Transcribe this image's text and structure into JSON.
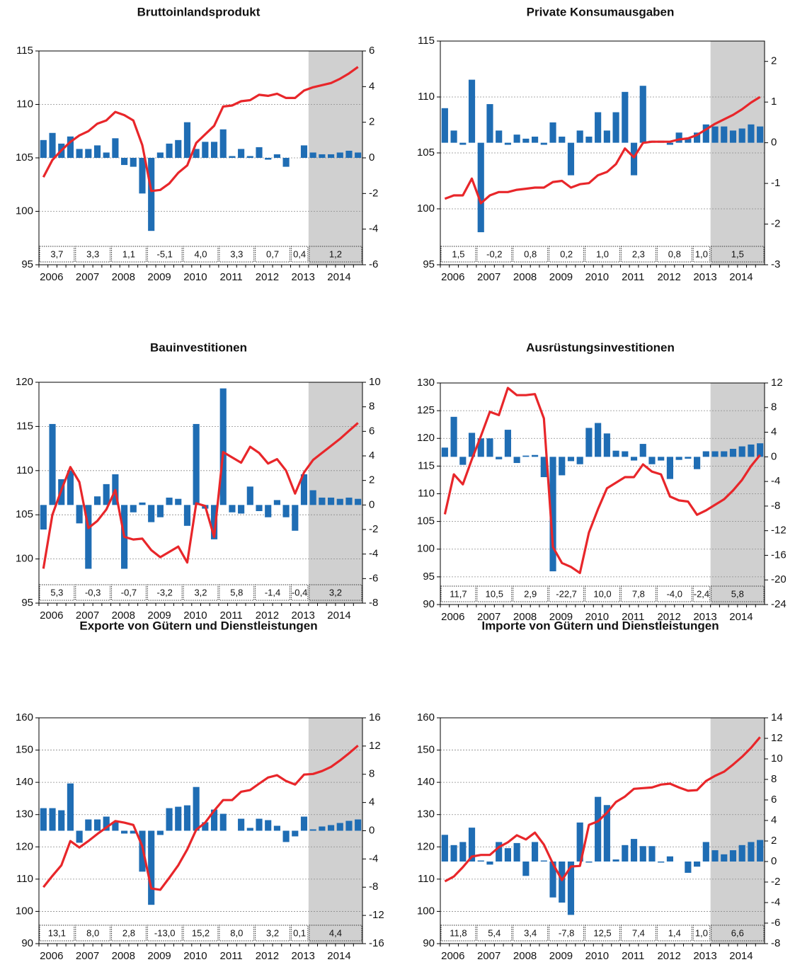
{
  "chart_data": [
    {
      "type": "combo",
      "title": "Bruttoinlandsprodukt",
      "categories": [
        "2006",
        null,
        null,
        null,
        "2007",
        null,
        null,
        null,
        "2008",
        null,
        null,
        null,
        "2009",
        null,
        null,
        null,
        "2010",
        null,
        null,
        null,
        "2011",
        null,
        null,
        null,
        "2012",
        null,
        null,
        null,
        "2013",
        null,
        null,
        null,
        "2014",
        null,
        null,
        null
      ],
      "ylim": [
        95,
        115
      ],
      "yticks": [
        95,
        100,
        105,
        110,
        115
      ],
      "y2lim": [
        -6,
        6
      ],
      "y2ticks": [
        -6,
        -4,
        -2,
        0,
        2,
        4,
        6
      ],
      "grid": true,
      "series": [
        {
          "type": "bar",
          "axis": "y2",
          "color": "#1f6db4",
          "values": [
            1.0,
            1.4,
            0.8,
            1.2,
            0.5,
            0.5,
            0.7,
            0.3,
            1.1,
            -0.4,
            -0.5,
            -2.0,
            -4.1,
            0.3,
            0.8,
            1.0,
            2.0,
            0.5,
            0.9,
            0.9,
            1.6,
            0.1,
            0.5,
            0.1,
            0.6,
            -0.1,
            0.2,
            -0.5,
            0.0,
            0.7,
            0.3,
            0.2,
            0.2,
            0.3,
            0.4,
            0.3
          ]
        },
        {
          "type": "line",
          "axis": "y",
          "color": "#e8262a",
          "values": [
            103.2,
            104.8,
            105.7,
            106.5,
            107.1,
            107.5,
            108.2,
            108.5,
            109.3,
            109.0,
            108.5,
            106.2,
            101.9,
            102.0,
            102.6,
            103.6,
            104.3,
            106.4,
            107.2,
            108.0,
            109.8,
            109.9,
            110.3,
            110.4,
            110.9,
            110.8,
            111.0,
            110.6,
            110.6,
            111.3,
            111.6,
            111.8,
            112.0,
            112.4,
            112.9,
            113.5
          ]
        }
      ],
      "annual": {
        "values": [
          3.7,
          3.3,
          1.1,
          -5.1,
          4.0,
          3.3,
          0.7,
          0.4,
          1.2
        ],
        "value_labels": [
          "3,7",
          "3,3",
          "1,1",
          "-5,1",
          "4,0",
          "3,3",
          "0,7",
          "0,4",
          "1,2"
        ]
      }
    },
    {
      "type": "combo",
      "title": "Private Konsumausgaben",
      "categories": [
        "2006",
        null,
        null,
        null,
        "2007",
        null,
        null,
        null,
        "2008",
        null,
        null,
        null,
        "2009",
        null,
        null,
        null,
        "2010",
        null,
        null,
        null,
        "2011",
        null,
        null,
        null,
        "2012",
        null,
        null,
        null,
        "2013",
        null,
        null,
        null,
        "2014",
        null,
        null,
        null
      ],
      "ylim": [
        95,
        115
      ],
      "yticks": [
        95,
        100,
        105,
        110,
        115
      ],
      "y2lim": [
        -3,
        2.5
      ],
      "y2ticks": [
        -3,
        -2,
        -1,
        0,
        1,
        2
      ],
      "grid": true,
      "series": [
        {
          "type": "bar",
          "axis": "y2",
          "color": "#1f6db4",
          "values": [
            0.85,
            0.3,
            -0.05,
            1.55,
            -2.2,
            0.95,
            0.3,
            -0.05,
            0.2,
            0.1,
            0.15,
            -0.05,
            0.5,
            0.15,
            -0.8,
            0.3,
            0.15,
            0.75,
            0.3,
            0.75,
            1.25,
            -0.8,
            1.4,
            0.05,
            0.05,
            -0.05,
            0.25,
            0.1,
            0.25,
            0.45,
            0.4,
            0.4,
            0.3,
            0.35,
            0.45,
            0.4
          ]
        },
        {
          "type": "line",
          "axis": "y",
          "color": "#e8262a",
          "values": [
            100.9,
            101.2,
            101.2,
            102.7,
            100.5,
            101.2,
            101.5,
            101.5,
            101.7,
            101.8,
            101.9,
            101.9,
            102.4,
            102.5,
            101.9,
            102.2,
            102.3,
            103.0,
            103.3,
            104.0,
            105.4,
            104.6,
            105.9,
            106.0,
            106.0,
            106.0,
            106.2,
            106.3,
            106.6,
            107.1,
            107.6,
            108.0,
            108.4,
            108.9,
            109.5,
            110.0
          ]
        }
      ],
      "annual": {
        "values": [
          1.5,
          -0.2,
          0.8,
          0.2,
          1.0,
          2.3,
          0.8,
          1.0,
          1.5
        ],
        "value_labels": [
          "1,5",
          "-0,2",
          "0,8",
          "0,2",
          "1,0",
          "2,3",
          "0,8",
          "1,0",
          "1,5"
        ]
      }
    },
    {
      "type": "combo",
      "title": "Bauinvestitionen",
      "categories": [
        "2006",
        null,
        null,
        null,
        "2007",
        null,
        null,
        null,
        "2008",
        null,
        null,
        null,
        "2009",
        null,
        null,
        null,
        "2010",
        null,
        null,
        null,
        "2011",
        null,
        null,
        null,
        "2012",
        null,
        null,
        null,
        "2013",
        null,
        null,
        null,
        "2014",
        null,
        null,
        null
      ],
      "ylim": [
        95,
        120
      ],
      "yticks": [
        95,
        100,
        105,
        110,
        115,
        120
      ],
      "y2lim": [
        -8,
        10
      ],
      "y2ticks": [
        -8,
        -6,
        -4,
        -2,
        0,
        2,
        4,
        6,
        8,
        10
      ],
      "grid": true,
      "series": [
        {
          "type": "bar",
          "axis": "y2",
          "color": "#1f6db4",
          "values": [
            -2.0,
            6.6,
            2.1,
            2.8,
            -1.5,
            -5.2,
            0.7,
            1.7,
            2.5,
            -5.2,
            -0.6,
            0.2,
            -1.4,
            -1.0,
            0.6,
            0.5,
            -1.7,
            6.6,
            -0.3,
            -2.8,
            9.5,
            -0.6,
            -0.7,
            1.5,
            -0.5,
            -1.0,
            0.4,
            -1.0,
            -2.1,
            2.5,
            1.2,
            0.6,
            0.6,
            0.5,
            0.6,
            0.5
          ]
        },
        {
          "type": "line",
          "axis": "y",
          "color": "#e8262a",
          "values": [
            98.9,
            105.0,
            107.8,
            110.4,
            108.7,
            103.5,
            104.3,
            105.6,
            107.8,
            102.5,
            102.2,
            102.3,
            101.0,
            100.2,
            100.8,
            101.4,
            99.6,
            106.3,
            106.0,
            102.5,
            112.1,
            111.5,
            110.9,
            112.7,
            112.0,
            110.8,
            111.3,
            110.0,
            107.4,
            109.8,
            111.2,
            112.0,
            112.8,
            113.6,
            114.5,
            115.4
          ]
        }
      ],
      "annual": {
        "values": [
          5.3,
          -0.3,
          -0.7,
          -3.2,
          3.2,
          5.8,
          -1.4,
          -0.4,
          3.2
        ],
        "value_labels": [
          "5,3",
          "-0,3",
          "-0,7",
          "-3,2",
          "3,2",
          "5,8",
          "-1,4",
          "-0,4",
          "3,2"
        ]
      }
    },
    {
      "type": "combo",
      "title": "Ausrüstungsinvestitionen",
      "categories": [
        "2006",
        null,
        null,
        null,
        "2007",
        null,
        null,
        null,
        "2008",
        null,
        null,
        null,
        "2009",
        null,
        null,
        null,
        "2010",
        null,
        null,
        null,
        "2011",
        null,
        null,
        null,
        "2012",
        null,
        null,
        null,
        "2013",
        null,
        null,
        null,
        "2014",
        null,
        null,
        null
      ],
      "ylim": [
        90,
        130
      ],
      "yticks": [
        90,
        95,
        100,
        105,
        110,
        115,
        120,
        125,
        130
      ],
      "y2lim": [
        -24,
        12
      ],
      "y2ticks": [
        -24,
        -20,
        -16,
        -12,
        -8,
        -4,
        0,
        4,
        8,
        12
      ],
      "grid": true,
      "series": [
        {
          "type": "bar",
          "axis": "y2",
          "color": "#1f6db4",
          "values": [
            1.5,
            6.5,
            -1.3,
            3.9,
            3.0,
            3.0,
            -0.4,
            4.4,
            -1.0,
            0.2,
            0.3,
            -3.3,
            -18.6,
            -3.0,
            -0.7,
            -1.2,
            4.7,
            5.5,
            3.8,
            1.0,
            0.9,
            -0.6,
            2.1,
            -1.2,
            -0.6,
            -3.6,
            -0.5,
            -0.3,
            -2.0,
            0.9,
            0.9,
            0.9,
            1.3,
            1.7,
            2.0,
            2.2
          ]
        },
        {
          "type": "line",
          "axis": "y",
          "color": "#e8262a",
          "values": [
            106.3,
            113.5,
            111.7,
            116.2,
            120.4,
            124.8,
            124.2,
            129.1,
            127.8,
            127.8,
            128.0,
            123.6,
            100.4,
            97.5,
            96.8,
            95.7,
            103.0,
            107.2,
            111.0,
            112.0,
            113.0,
            113.0,
            115.3,
            114.0,
            113.5,
            109.5,
            108.8,
            108.6,
            106.2,
            107.0,
            108.0,
            109.0,
            110.6,
            112.5,
            115.0,
            117.0
          ]
        }
      ],
      "annual": {
        "values": [
          11.7,
          10.5,
          2.9,
          -22.7,
          10.0,
          7.8,
          -4.0,
          -2.4,
          5.8
        ],
        "value_labels": [
          "11,7",
          "10,5",
          "2,9",
          "-22,7",
          "10,0",
          "7,8",
          "-4,0",
          "-2,4",
          "5,8"
        ]
      }
    },
    {
      "type": "combo",
      "title": "Exporte von Gütern und Dienstleistungen",
      "categories": [
        "2006",
        null,
        null,
        null,
        "2007",
        null,
        null,
        null,
        "2008",
        null,
        null,
        null,
        "2009",
        null,
        null,
        null,
        "2010",
        null,
        null,
        null,
        "2011",
        null,
        null,
        null,
        "2012",
        null,
        null,
        null,
        "2013",
        null,
        null,
        null,
        "2014",
        null,
        null,
        null
      ],
      "ylim": [
        90,
        160
      ],
      "yticks": [
        90,
        100,
        110,
        120,
        130,
        140,
        150,
        160
      ],
      "y2lim": [
        -16,
        16
      ],
      "y2ticks": [
        -16,
        -12,
        -8,
        -4,
        0,
        4,
        8,
        12,
        16
      ],
      "grid": true,
      "series": [
        {
          "type": "bar",
          "axis": "y2",
          "color": "#1f6db4",
          "values": [
            3.2,
            3.2,
            2.9,
            6.7,
            -1.7,
            1.6,
            1.6,
            2.0,
            1.2,
            -0.4,
            -0.4,
            -5.8,
            -10.5,
            -0.6,
            3.2,
            3.4,
            3.6,
            6.2,
            1.2,
            3.0,
            2.4,
            0.0,
            1.7,
            0.4,
            1.7,
            1.5,
            0.7,
            -1.6,
            -0.8,
            2.0,
            0.2,
            0.6,
            0.8,
            1.1,
            1.4,
            1.6
          ]
        },
        {
          "type": "line",
          "axis": "y",
          "color": "#e8262a",
          "values": [
            107.5,
            111.0,
            114.3,
            121.8,
            119.8,
            121.8,
            124.0,
            126.0,
            128.0,
            127.5,
            126.8,
            120.2,
            107.1,
            106.7,
            110.4,
            114.3,
            119.2,
            125.3,
            127.5,
            131.2,
            134.5,
            134.5,
            137.1,
            137.6,
            139.6,
            141.5,
            142.2,
            140.4,
            139.3,
            142.4,
            142.6,
            143.5,
            144.8,
            146.8,
            149.0,
            151.4
          ]
        }
      ],
      "annual": {
        "values": [
          13.1,
          8.0,
          2.8,
          -13.0,
          15.2,
          8.0,
          3.2,
          0.1,
          4.4
        ],
        "value_labels": [
          "13,1",
          "8,0",
          "2,8",
          "-13,0",
          "15,2",
          "8,0",
          "3,2",
          "0,1",
          "4,4"
        ]
      }
    },
    {
      "type": "combo",
      "title": "Importe von Gütern und Dienstleistungen",
      "categories": [
        "2006",
        null,
        null,
        null,
        "2007",
        null,
        null,
        null,
        "2008",
        null,
        null,
        null,
        "2009",
        null,
        null,
        null,
        "2010",
        null,
        null,
        null,
        "2011",
        null,
        null,
        null,
        "2012",
        null,
        null,
        null,
        "2013",
        null,
        null,
        null,
        "2014",
        null,
        null,
        null
      ],
      "ylim": [
        90,
        160
      ],
      "yticks": [
        90,
        100,
        110,
        120,
        130,
        140,
        150,
        160
      ],
      "y2lim": [
        -8,
        14
      ],
      "y2ticks": [
        -8,
        -6,
        -4,
        -2,
        0,
        2,
        4,
        6,
        8,
        10,
        12,
        14
      ],
      "grid": true,
      "series": [
        {
          "type": "bar",
          "axis": "y2",
          "color": "#1f6db4",
          "values": [
            2.6,
            1.6,
            1.9,
            3.3,
            0.1,
            -0.3,
            1.9,
            1.3,
            1.8,
            -1.4,
            1.9,
            0.1,
            -3.5,
            -4.0,
            -5.2,
            3.8,
            -0.1,
            6.3,
            5.5,
            0.2,
            1.6,
            2.2,
            1.5,
            1.5,
            -0.1,
            0.5,
            0.0,
            -1.1,
            -0.5,
            1.9,
            1.1,
            0.7,
            1.1,
            1.6,
            1.9,
            2.1
          ]
        },
        {
          "type": "line",
          "axis": "y",
          "color": "#e8262a",
          "values": [
            109.3,
            110.8,
            113.7,
            117.0,
            117.5,
            117.5,
            119.9,
            121.4,
            123.6,
            122.3,
            124.4,
            120.7,
            114.8,
            109.7,
            113.9,
            114.1,
            126.8,
            127.9,
            130.6,
            133.9,
            135.6,
            138.0,
            138.2,
            138.4,
            139.3,
            139.6,
            138.4,
            137.4,
            137.6,
            140.4,
            142.0,
            143.3,
            145.5,
            147.9,
            150.7,
            154.0
          ]
        }
      ],
      "annual": {
        "values": [
          11.8,
          5.4,
          3.4,
          -7.8,
          12.5,
          7.4,
          1.4,
          1.0,
          6.6
        ],
        "value_labels": [
          "11,8",
          "5,4",
          "3,4",
          "-7,8",
          "12,5",
          "7,4",
          "1,4",
          "1,0",
          "6,6"
        ]
      }
    }
  ]
}
